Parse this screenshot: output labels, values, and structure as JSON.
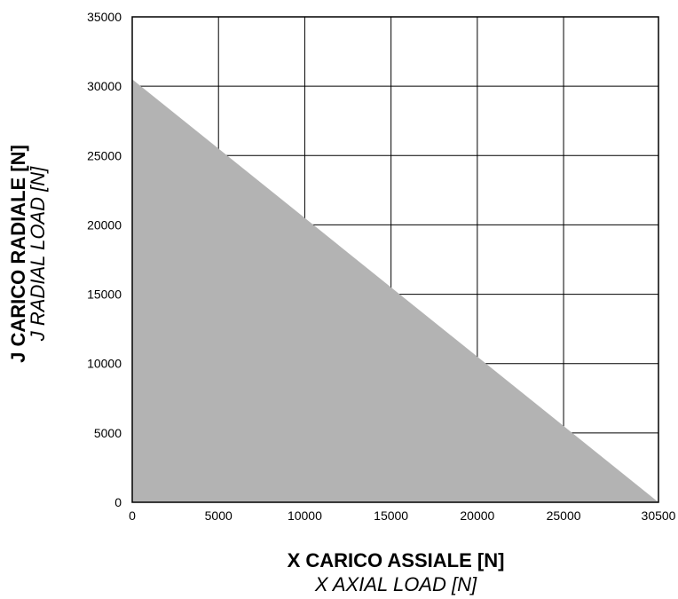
{
  "chart_data": {
    "type": "area",
    "xlabel": "X CARICO ASSIALE [N]",
    "xlabel_secondary": "X AXIAL LOAD [N]",
    "ylabel": "J CARICO RADIALE [N]",
    "ylabel_secondary": "J RADIAL LOAD [N]",
    "xlim": [
      0,
      30500
    ],
    "ylim": [
      0,
      35000
    ],
    "x_ticks": [
      0,
      5000,
      10000,
      15000,
      20000,
      25000,
      30500
    ],
    "x_tick_labels": [
      "0",
      "5000",
      "10000",
      "15000",
      "20000",
      "25000",
      "30500"
    ],
    "y_ticks": [
      0,
      5000,
      10000,
      15000,
      20000,
      25000,
      30000,
      35000
    ],
    "y_tick_labels": [
      "0",
      "5000",
      "10000",
      "15000",
      "20000",
      "25000",
      "30000",
      "35000"
    ],
    "grid": true,
    "fill_color": "#b3b3b3",
    "series": [
      {
        "x": [
          0,
          30500
        ],
        "y": [
          30500,
          0
        ]
      }
    ]
  }
}
